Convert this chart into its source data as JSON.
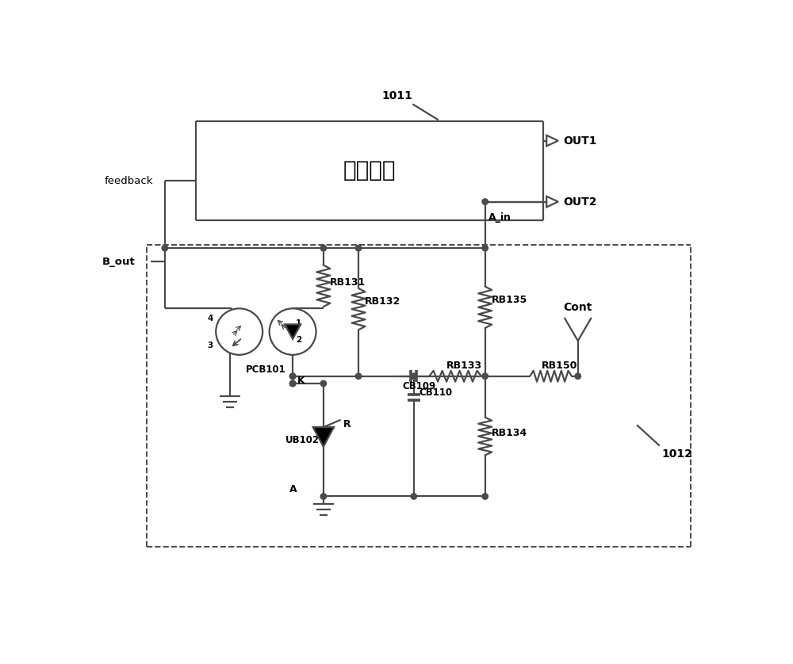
{
  "bg_color": "#ffffff",
  "line_color": "#4a4a4a",
  "line_width": 1.6,
  "fig_width": 10.0,
  "fig_height": 8.38,
  "dpi": 100,
  "power_box_label": "供电电路",
  "label_1011": "1011",
  "label_1012": "1012",
  "out1": "OUT1",
  "out2": "OUT2",
  "a_in": "A_in",
  "feedback": "feedback",
  "b_out": "B_out",
  "rb131": "RB131",
  "rb132": "RB132",
  "rb133": "RB133",
  "rb134": "RB134",
  "rb135": "RB135",
  "rb150": "RB150",
  "cb109": "CB109",
  "cb110": "CB110",
  "pcb101": "PCB101",
  "ub102": "UB102",
  "cont": "Cont",
  "k_lbl": "K",
  "a_lbl": "A",
  "r_lbl": "R",
  "pin1": "1",
  "pin2": "2",
  "pin3": "3",
  "pin4": "4"
}
